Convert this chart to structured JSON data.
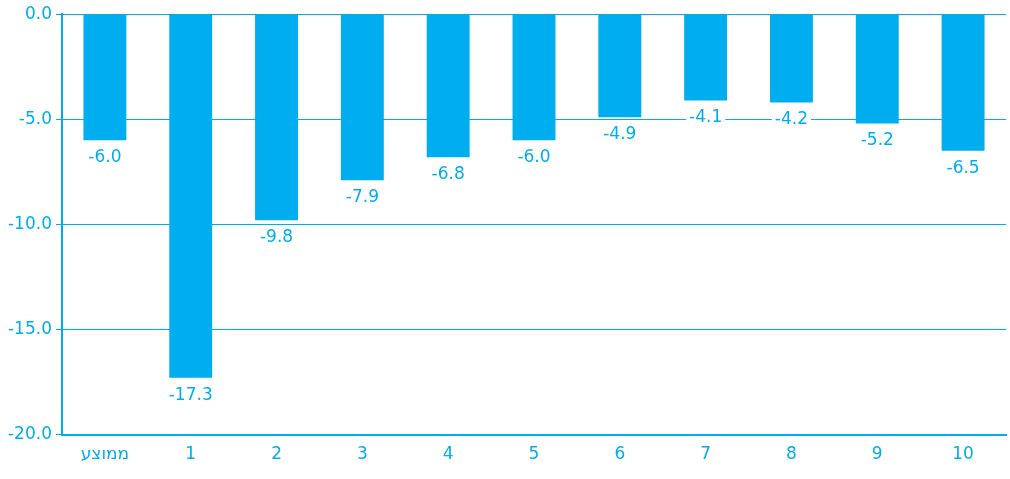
{
  "chart_data": {
    "type": "bar",
    "categories": [
      "ממוצע",
      "1",
      "2",
      "3",
      "4",
      "5",
      "6",
      "7",
      "8",
      "9",
      "10"
    ],
    "values": [
      -6.0,
      -17.3,
      -9.8,
      -7.9,
      -6.8,
      -6.0,
      -4.9,
      -4.1,
      -4.2,
      -5.2,
      -6.5
    ],
    "value_labels": [
      "-6.0",
      "-17.3",
      "-9.8",
      "-7.9",
      "-6.8",
      "-6.0",
      "-4.9",
      "-4.1",
      "-4.2",
      "-5.2",
      "-6.5"
    ],
    "color": "#00aeef",
    "ylim": [
      -20,
      0
    ],
    "yticks": [
      {
        "value": 0,
        "label": "0.0"
      },
      {
        "value": -5,
        "label": "-5.0"
      },
      {
        "value": -10,
        "label": "-10.0"
      },
      {
        "value": -15,
        "label": "-15.0"
      },
      {
        "value": -20,
        "label": "-20.0"
      }
    ],
    "grid": "y",
    "legend": false
  }
}
